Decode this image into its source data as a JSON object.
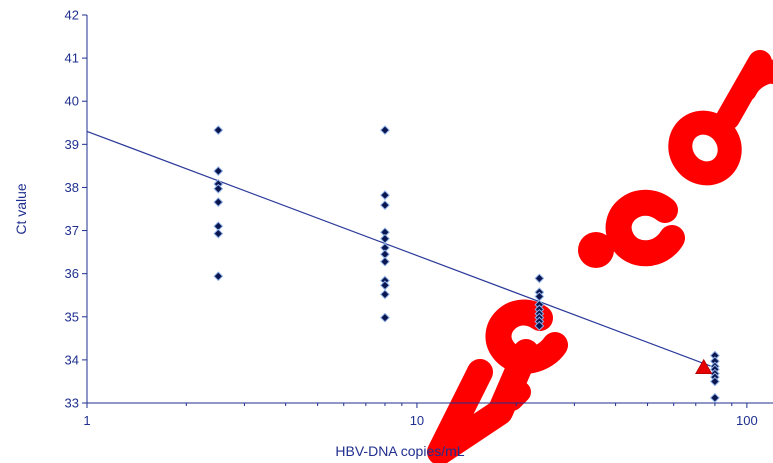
{
  "chart_data": {
    "type": "scatter",
    "title": "",
    "xlabel": "HBV-DNA copies/mL",
    "ylabel": "Ct value",
    "x_scale": "log",
    "xlim": [
      1,
      120
    ],
    "ylim": [
      33,
      42
    ],
    "x_ticks": [
      1,
      10,
      100
    ],
    "x_tick_labels": [
      "1",
      "10",
      "100"
    ],
    "y_ticks": [
      33,
      34,
      35,
      36,
      37,
      38,
      39,
      40,
      41,
      42
    ],
    "y_tick_labels": [
      "33",
      "34",
      "35",
      "36",
      "37",
      "38",
      "39",
      "40",
      "41",
      "42"
    ],
    "grid": false,
    "legend": "none",
    "colors": {
      "axis": "#1f2f8f",
      "text": "#1f2f8f",
      "point_fill": "#0a1650",
      "point_edge": "#8fb0e6",
      "fit_line": "#2b3a9a",
      "triangle_fill": "#e60000"
    },
    "series": [
      {
        "marker": "diamond",
        "points": [
          {
            "x": 2.5,
            "y": 39.33
          },
          {
            "x": 2.5,
            "y": 38.38
          },
          {
            "x": 2.5,
            "y": 38.08
          },
          {
            "x": 2.5,
            "y": 37.97
          },
          {
            "x": 2.5,
            "y": 37.66
          },
          {
            "x": 2.5,
            "y": 37.1
          },
          {
            "x": 2.5,
            "y": 36.93
          },
          {
            "x": 2.5,
            "y": 35.94
          },
          {
            "x": 8,
            "y": 39.33
          },
          {
            "x": 8,
            "y": 37.82
          },
          {
            "x": 8,
            "y": 37.59
          },
          {
            "x": 8,
            "y": 36.96
          },
          {
            "x": 8,
            "y": 36.81
          },
          {
            "x": 8,
            "y": 36.6
          },
          {
            "x": 8,
            "y": 36.45
          },
          {
            "x": 8,
            "y": 36.28
          },
          {
            "x": 8,
            "y": 35.84
          },
          {
            "x": 8,
            "y": 35.73
          },
          {
            "x": 8,
            "y": 35.52
          },
          {
            "x": 8,
            "y": 34.98
          },
          {
            "x": 23.5,
            "y": 35.89
          },
          {
            "x": 23.5,
            "y": 35.57
          },
          {
            "x": 23.5,
            "y": 35.47
          },
          {
            "x": 23.5,
            "y": 35.28
          },
          {
            "x": 23.5,
            "y": 35.17
          },
          {
            "x": 23.5,
            "y": 35.07
          },
          {
            "x": 23.5,
            "y": 34.98
          },
          {
            "x": 23.5,
            "y": 34.89
          },
          {
            "x": 23.5,
            "y": 34.79
          },
          {
            "x": 80,
            "y": 34.1
          },
          {
            "x": 80,
            "y": 33.97
          },
          {
            "x": 80,
            "y": 33.85
          },
          {
            "x": 80,
            "y": 33.78
          },
          {
            "x": 80,
            "y": 33.68
          },
          {
            "x": 80,
            "y": 33.6
          },
          {
            "x": 80,
            "y": 33.5
          },
          {
            "x": 80,
            "y": 33.12
          }
        ]
      },
      {
        "marker": "triangle",
        "points": [
          {
            "x": 74,
            "y": 33.82
          }
        ]
      }
    ],
    "fit_line": {
      "x": [
        1,
        80
      ],
      "y": [
        39.3,
        33.82
      ]
    }
  }
}
